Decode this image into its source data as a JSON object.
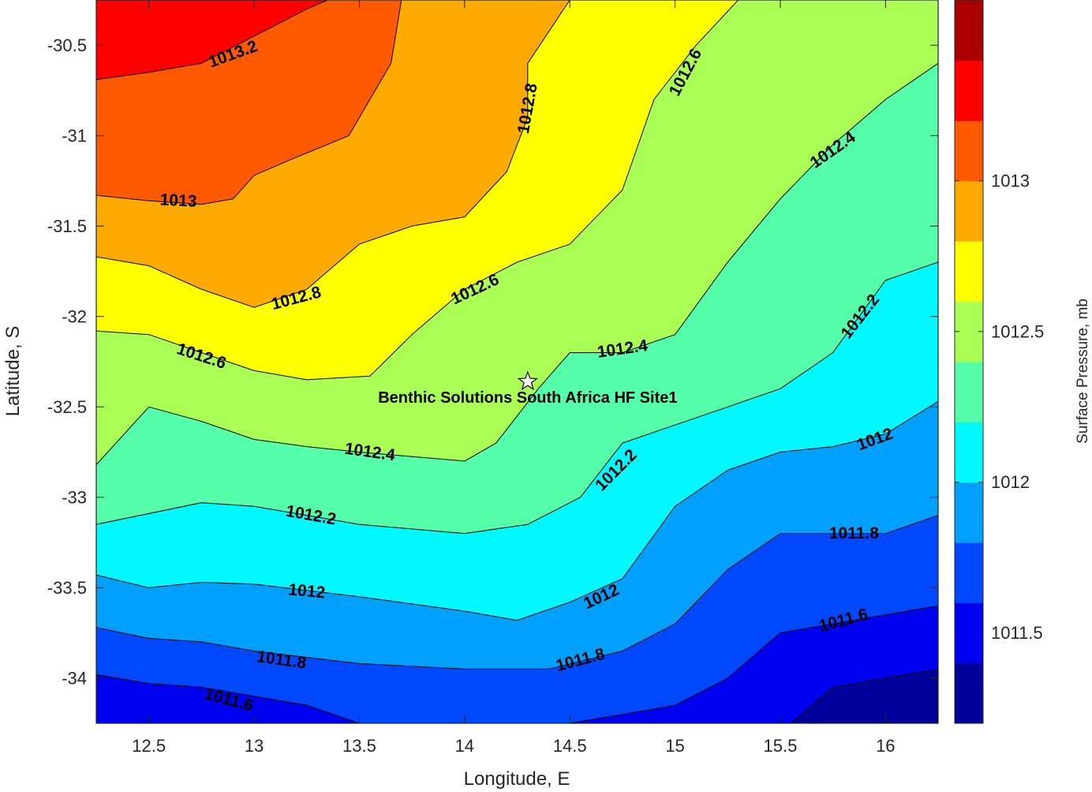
{
  "chart_data": {
    "type": "contourf",
    "xlabel": "Longitude, E",
    "ylabel": "Latitude, S",
    "colorbar_label": "Surface Pressure, mb",
    "xlim": [
      12.25,
      16.25
    ],
    "ylim": [
      -34.25,
      -30.25
    ],
    "xticks": [
      12.5,
      13,
      13.5,
      14,
      14.5,
      15,
      15.5,
      16
    ],
    "xtick_labels": [
      "12.5",
      "13",
      "13.5",
      "14",
      "14.5",
      "15",
      "15.5",
      "16"
    ],
    "yticks": [
      -30.5,
      -31,
      -31.5,
      -32,
      -32.5,
      -33,
      -33.5,
      -34
    ],
    "ytick_labels": [
      "-30.5",
      "-31",
      "-31.5",
      "-32",
      "-32.5",
      "-33",
      "-33.5",
      "-34"
    ],
    "colorbar": {
      "range": [
        1011.2,
        1013.4
      ],
      "ticks": [
        1011.5,
        1012,
        1012.5,
        1013
      ],
      "tick_labels": [
        "1011.5",
        "1012",
        "1012.5",
        "1013"
      ],
      "levels": [
        {
          "min": 1011.2,
          "max": 1011.4,
          "color": "#00009b"
        },
        {
          "min": 1011.4,
          "max": 1011.6,
          "color": "#0000f0"
        },
        {
          "min": 1011.6,
          "max": 1011.8,
          "color": "#0048ff"
        },
        {
          "min": 1011.8,
          "max": 1012.0,
          "color": "#00a0ff"
        },
        {
          "min": 1012.0,
          "max": 1012.2,
          "color": "#00f8ff"
        },
        {
          "min": 1012.2,
          "max": 1012.4,
          "color": "#55ffaa"
        },
        {
          "min": 1012.4,
          "max": 1012.6,
          "color": "#aaff55"
        },
        {
          "min": 1012.6,
          "max": 1012.8,
          "color": "#ffff00"
        },
        {
          "min": 1012.8,
          "max": 1013.0,
          "color": "#ffaa00"
        },
        {
          "min": 1013.0,
          "max": 1013.2,
          "color": "#ff5a00"
        },
        {
          "min": 1013.2,
          "max": 1013.4,
          "color": "#ff0000"
        },
        {
          "min": 1013.4,
          "max": 1013.6,
          "color": "#aa0000"
        }
      ]
    },
    "contours": [
      {
        "level": 1013.2,
        "color": "#ff0000",
        "points": [
          [
            12.25,
            -30.69
          ],
          [
            12.5,
            -30.65
          ],
          [
            12.75,
            -30.6
          ],
          [
            13.0,
            -30.45
          ],
          [
            13.25,
            -30.3
          ],
          [
            13.35,
            -30.25
          ]
        ]
      },
      {
        "level": 1013.0,
        "color": "#ff5a00",
        "points": [
          [
            12.25,
            -31.33
          ],
          [
            12.5,
            -31.36
          ],
          [
            12.75,
            -31.38
          ],
          [
            12.9,
            -31.35
          ],
          [
            13.0,
            -31.22
          ],
          [
            13.2,
            -31.12
          ],
          [
            13.45,
            -31.0
          ],
          [
            13.65,
            -30.6
          ],
          [
            13.7,
            -30.25
          ]
        ]
      },
      {
        "level": 1012.8,
        "color": "#ffaa00",
        "points": [
          [
            12.25,
            -31.67
          ],
          [
            12.5,
            -31.72
          ],
          [
            12.75,
            -31.85
          ],
          [
            13.0,
            -31.95
          ],
          [
            13.25,
            -31.85
          ],
          [
            13.5,
            -31.6
          ],
          [
            13.75,
            -31.5
          ],
          [
            14.0,
            -31.45
          ],
          [
            14.2,
            -31.2
          ],
          [
            14.3,
            -30.9
          ],
          [
            14.3,
            -30.6
          ],
          [
            14.5,
            -30.25
          ]
        ]
      },
      {
        "level": 1012.6,
        "color": "#ffff00",
        "points": [
          [
            12.25,
            -32.08
          ],
          [
            12.5,
            -32.1
          ],
          [
            12.75,
            -32.2
          ],
          [
            13.0,
            -32.3
          ],
          [
            13.25,
            -32.35
          ],
          [
            13.55,
            -32.33
          ],
          [
            13.75,
            -32.1
          ],
          [
            14.0,
            -31.85
          ],
          [
            14.25,
            -31.7
          ],
          [
            14.5,
            -31.6
          ],
          [
            14.75,
            -31.3
          ],
          [
            14.9,
            -30.8
          ],
          [
            15.1,
            -30.5
          ],
          [
            15.3,
            -30.25
          ]
        ]
      },
      {
        "level": 1012.4,
        "color": "#aaff55",
        "points": [
          [
            12.25,
            -32.82
          ],
          [
            12.5,
            -32.5
          ],
          [
            12.75,
            -32.58
          ],
          [
            13.0,
            -32.68
          ],
          [
            13.25,
            -32.72
          ],
          [
            13.5,
            -32.75
          ],
          [
            14.0,
            -32.8
          ],
          [
            14.15,
            -32.7
          ],
          [
            14.35,
            -32.4
          ],
          [
            14.5,
            -32.2
          ],
          [
            14.75,
            -32.2
          ],
          [
            15.0,
            -32.1
          ],
          [
            15.25,
            -31.7
          ],
          [
            15.5,
            -31.35
          ],
          [
            15.75,
            -31.05
          ],
          [
            16.0,
            -30.8
          ],
          [
            16.25,
            -30.6
          ]
        ]
      },
      {
        "level": 1012.2,
        "color": "#55ffaa",
        "points": [
          [
            12.25,
            -33.15
          ],
          [
            12.75,
            -33.03
          ],
          [
            13.0,
            -33.05
          ],
          [
            13.5,
            -33.15
          ],
          [
            14.0,
            -33.2
          ],
          [
            14.3,
            -33.15
          ],
          [
            14.55,
            -33.0
          ],
          [
            14.75,
            -32.7
          ],
          [
            15.0,
            -32.6
          ],
          [
            15.25,
            -32.5
          ],
          [
            15.5,
            -32.4
          ],
          [
            15.75,
            -32.2
          ],
          [
            16.0,
            -31.8
          ],
          [
            16.25,
            -31.7
          ]
        ]
      },
      {
        "level": 1012.0,
        "color": "#00f8ff",
        "points": [
          [
            12.25,
            -33.43
          ],
          [
            12.5,
            -33.5
          ],
          [
            12.75,
            -33.47
          ],
          [
            13.0,
            -33.48
          ],
          [
            13.5,
            -33.55
          ],
          [
            14.0,
            -33.63
          ],
          [
            14.25,
            -33.68
          ],
          [
            14.5,
            -33.58
          ],
          [
            14.75,
            -33.45
          ],
          [
            15.0,
            -33.05
          ],
          [
            15.25,
            -32.85
          ],
          [
            15.5,
            -32.75
          ],
          [
            15.75,
            -32.72
          ],
          [
            16.0,
            -32.65
          ],
          [
            16.25,
            -32.47
          ]
        ]
      },
      {
        "level": 1011.8,
        "color": "#00a0ff",
        "points": [
          [
            12.25,
            -33.72
          ],
          [
            12.5,
            -33.78
          ],
          [
            12.75,
            -33.8
          ],
          [
            13.0,
            -33.85
          ],
          [
            13.5,
            -33.92
          ],
          [
            14.0,
            -33.95
          ],
          [
            14.4,
            -33.95
          ],
          [
            14.75,
            -33.85
          ],
          [
            15.0,
            -33.7
          ],
          [
            15.25,
            -33.4
          ],
          [
            15.5,
            -33.2
          ],
          [
            15.75,
            -33.2
          ],
          [
            16.0,
            -33.2
          ],
          [
            16.25,
            -33.1
          ]
        ]
      },
      {
        "level": 1011.6,
        "color": "#0048ff",
        "points": [
          [
            12.25,
            -33.98
          ],
          [
            12.5,
            -34.03
          ],
          [
            12.75,
            -34.05
          ],
          [
            13.0,
            -34.1
          ],
          [
            13.25,
            -34.15
          ],
          [
            13.5,
            -34.25
          ],
          [
            14.5,
            -34.25
          ],
          [
            14.75,
            -34.2
          ],
          [
            15.0,
            -34.15
          ],
          [
            15.25,
            -34.0
          ],
          [
            15.5,
            -33.75
          ],
          [
            16.0,
            -33.65
          ],
          [
            16.25,
            -33.6
          ]
        ]
      },
      {
        "level": 1011.4,
        "color": "#0000f0",
        "points": [
          [
            15.55,
            -34.25
          ],
          [
            15.75,
            -34.05
          ],
          [
            16.0,
            -34.0
          ],
          [
            16.25,
            -33.95
          ]
        ]
      }
    ],
    "contour_labels": [
      {
        "text": "1013.2",
        "lon": 12.9,
        "lat": -30.55,
        "angle": -20
      },
      {
        "text": "1013",
        "lon": 12.64,
        "lat": -31.36,
        "angle": 3
      },
      {
        "text": "1012.8",
        "lon": 14.3,
        "lat": -30.85,
        "angle": -80
      },
      {
        "text": "1012.6",
        "lon": 15.05,
        "lat": -30.65,
        "angle": -62
      },
      {
        "text": "1012.4",
        "lon": 15.75,
        "lat": -31.08,
        "angle": -35
      },
      {
        "text": "1012.8",
        "lon": 13.2,
        "lat": -31.9,
        "angle": -15
      },
      {
        "text": "1012.6",
        "lon": 14.05,
        "lat": -31.85,
        "angle": -25
      },
      {
        "text": "1012.2",
        "lon": 15.88,
        "lat": -32.0,
        "angle": -52
      },
      {
        "text": "1012.6",
        "lon": 12.75,
        "lat": -32.22,
        "angle": 18
      },
      {
        "text": "1012.4",
        "lon": 14.75,
        "lat": -32.18,
        "angle": -8
      },
      {
        "text": "1012.4",
        "lon": 13.55,
        "lat": -32.75,
        "angle": 8
      },
      {
        "text": "1012.2",
        "lon": 14.72,
        "lat": -32.85,
        "angle": -45
      },
      {
        "text": "1012",
        "lon": 15.95,
        "lat": -32.68,
        "angle": -20
      },
      {
        "text": "1012.2",
        "lon": 13.27,
        "lat": -33.1,
        "angle": 10
      },
      {
        "text": "1011.8",
        "lon": 15.85,
        "lat": -33.2,
        "angle": 0
      },
      {
        "text": "1012",
        "lon": 13.25,
        "lat": -33.52,
        "angle": 5
      },
      {
        "text": "1012",
        "lon": 14.65,
        "lat": -33.55,
        "angle": -25
      },
      {
        "text": "1011.6",
        "lon": 15.8,
        "lat": -33.68,
        "angle": -15
      },
      {
        "text": "1011.8",
        "lon": 13.13,
        "lat": -33.9,
        "angle": 8
      },
      {
        "text": "1011.8",
        "lon": 14.55,
        "lat": -33.9,
        "angle": -15
      },
      {
        "text": "1011.6",
        "lon": 12.88,
        "lat": -34.12,
        "angle": 15
      }
    ],
    "site": {
      "name": "Benthic Solutions South Africa HF Site1",
      "lon": 14.3,
      "lat": -32.36,
      "marker": "star"
    }
  }
}
